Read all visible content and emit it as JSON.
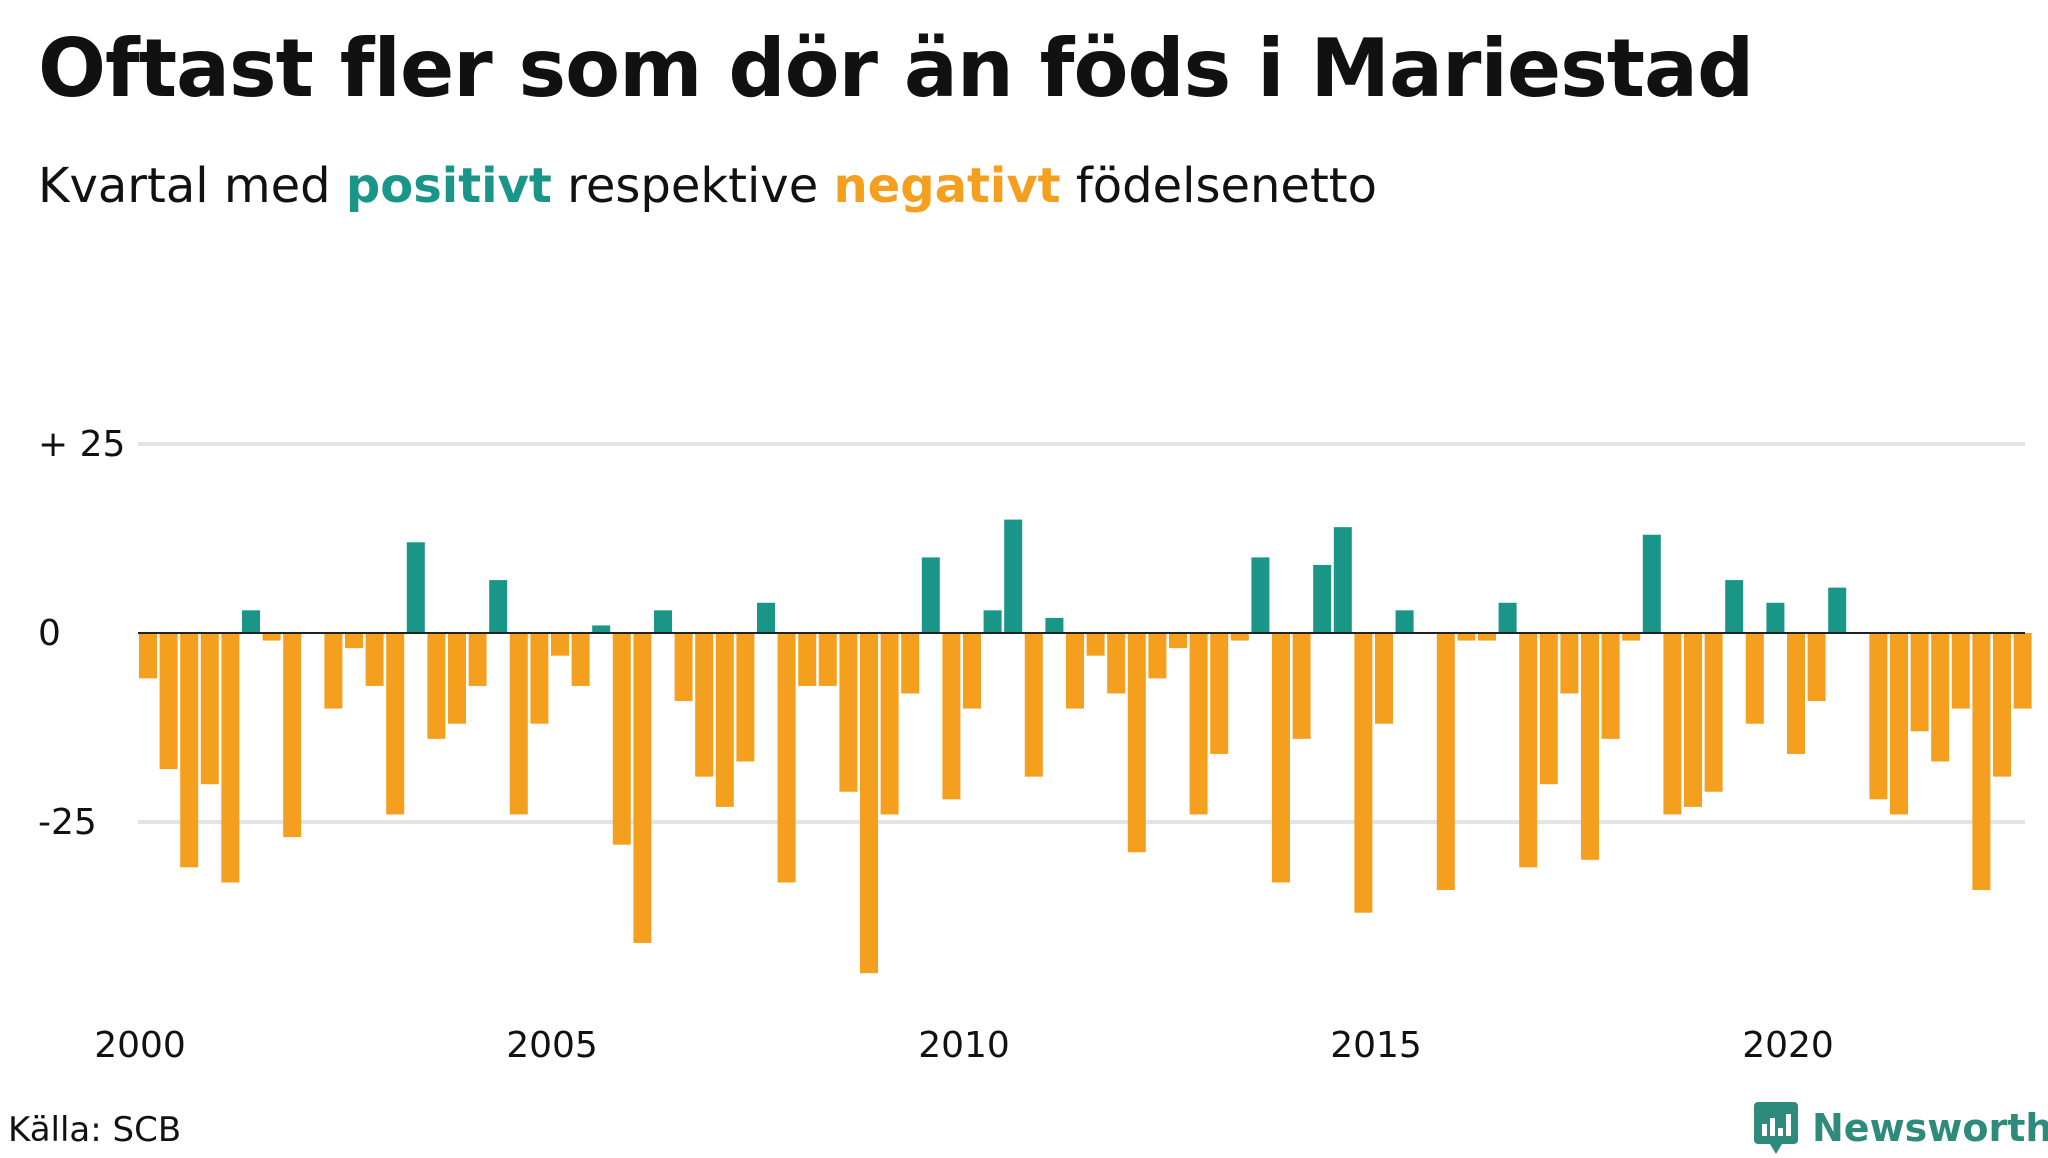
{
  "title": "Oftast fler som dör än föds i Mariestad",
  "subtitle": {
    "prefix": "Kvartal med ",
    "positive_word": "positivt",
    "middle": " respektive ",
    "negative_word": "negativt",
    "suffix": " födelsenetto"
  },
  "source": "Källa: SCB",
  "brand": {
    "name": "Newsworthy",
    "icon": "newsworthy-logo-icon"
  },
  "colors": {
    "positive": "#1a9688",
    "negative": "#f59f1f",
    "grid": "#e3e3e8",
    "baseline": "#222222"
  },
  "chart_data": {
    "type": "bar",
    "x_start_year": 2000,
    "periods_per_year": 4,
    "x_ticks": [
      2000,
      2005,
      2010,
      2015,
      2020
    ],
    "x_tick_labels": [
      "2000",
      "2005",
      "2010",
      "2015",
      "2020"
    ],
    "y_ticks": [
      25,
      0,
      -25
    ],
    "y_tick_labels": [
      "+ 25",
      "0",
      "-25"
    ],
    "ylim": [
      -45,
      25
    ],
    "grid": true,
    "values": [
      -6,
      -18,
      -31,
      -20,
      -33,
      3,
      -1,
      -27,
      0,
      -10,
      -2,
      -7,
      -24,
      12,
      -14,
      -12,
      -7,
      7,
      -24,
      -12,
      -3,
      -7,
      1,
      -28,
      -41,
      3,
      -9,
      -19,
      -23,
      -17,
      4,
      -33,
      -7,
      -7,
      -21,
      -45,
      -24,
      -8,
      10,
      -22,
      -10,
      3,
      15,
      -19,
      2,
      -10,
      -3,
      -8,
      -29,
      -6,
      -2,
      -24,
      -16,
      -1,
      10,
      -33,
      -14,
      9,
      14,
      -37,
      -12,
      3,
      0,
      -34,
      -1,
      -1,
      4,
      -31,
      -20,
      -8,
      -30,
      -14,
      -1,
      13,
      -24,
      -23,
      -21,
      7,
      -12,
      4,
      -16,
      -9,
      6,
      0,
      -22,
      -24,
      -13,
      -17,
      -10,
      -34,
      -19,
      -10
    ]
  }
}
